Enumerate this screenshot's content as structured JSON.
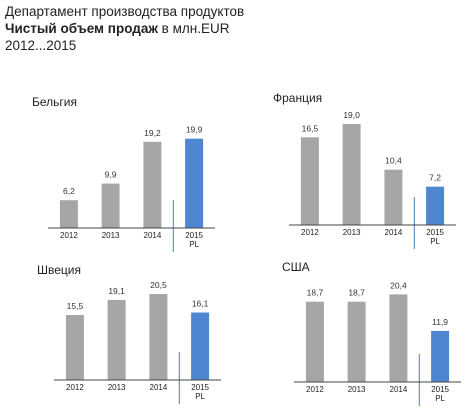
{
  "header": {
    "line1": "Департамент производства продуктов",
    "line2_bold": "Чистый объем продаж",
    "line2_rest": " в млн.EUR",
    "line3": "2012...2015"
  },
  "colors": {
    "actual": "#a6a6a6",
    "plan": "#4f86d1",
    "divider": "#4f7cb8",
    "axis": "#444444"
  },
  "chart_data": [
    {
      "type": "bar",
      "title": "Бельгия",
      "categories": [
        "2012",
        "2013",
        "2014",
        "2015 PL"
      ],
      "tick_top": [
        "2012",
        "2013",
        "2014",
        "2015"
      ],
      "tick_bottom": [
        "",
        "",
        "",
        "PL"
      ],
      "labels": [
        "6,2",
        "9,9",
        "19,2",
        "19,9"
      ],
      "values": [
        6.2,
        9.9,
        19.2,
        19.9
      ],
      "plan_index": 3,
      "ylim": [
        0,
        20.5
      ]
    },
    {
      "type": "bar",
      "title": "Франция",
      "categories": [
        "2012",
        "2013",
        "2014",
        "2015 PL"
      ],
      "tick_top": [
        "2012",
        "2013",
        "2014",
        "2015"
      ],
      "tick_bottom": [
        "",
        "",
        "",
        "PL"
      ],
      "labels": [
        "16,5",
        "19,0",
        "10,4",
        "7,2"
      ],
      "values": [
        16.5,
        19.0,
        10.4,
        7.2
      ],
      "plan_index": 3,
      "ylim": [
        0,
        20.5
      ]
    },
    {
      "type": "bar",
      "title": "Швеция",
      "categories": [
        "2012",
        "2013",
        "2014",
        "2015 PL"
      ],
      "tick_top": [
        "2012",
        "2013",
        "2014",
        "2015"
      ],
      "tick_bottom": [
        "",
        "",
        "",
        "PL"
      ],
      "labels": [
        "15,5",
        "19,1",
        "20,5",
        "16,1"
      ],
      "values": [
        15.5,
        19.1,
        20.5,
        16.1
      ],
      "plan_index": 3,
      "ylim": [
        0,
        20.5
      ]
    },
    {
      "type": "bar",
      "title": "США",
      "categories": [
        "2012",
        "2013",
        "2014",
        "2015 PL"
      ],
      "tick_top": [
        "2012",
        "2013",
        "2014",
        "2015"
      ],
      "tick_bottom": [
        "",
        "",
        "",
        "PL"
      ],
      "labels": [
        "18,7",
        "18,7",
        "20,4",
        "11,9"
      ],
      "values": [
        18.7,
        18.7,
        20.4,
        11.9
      ],
      "plan_index": 3,
      "ylim": [
        0,
        20.5
      ]
    }
  ]
}
